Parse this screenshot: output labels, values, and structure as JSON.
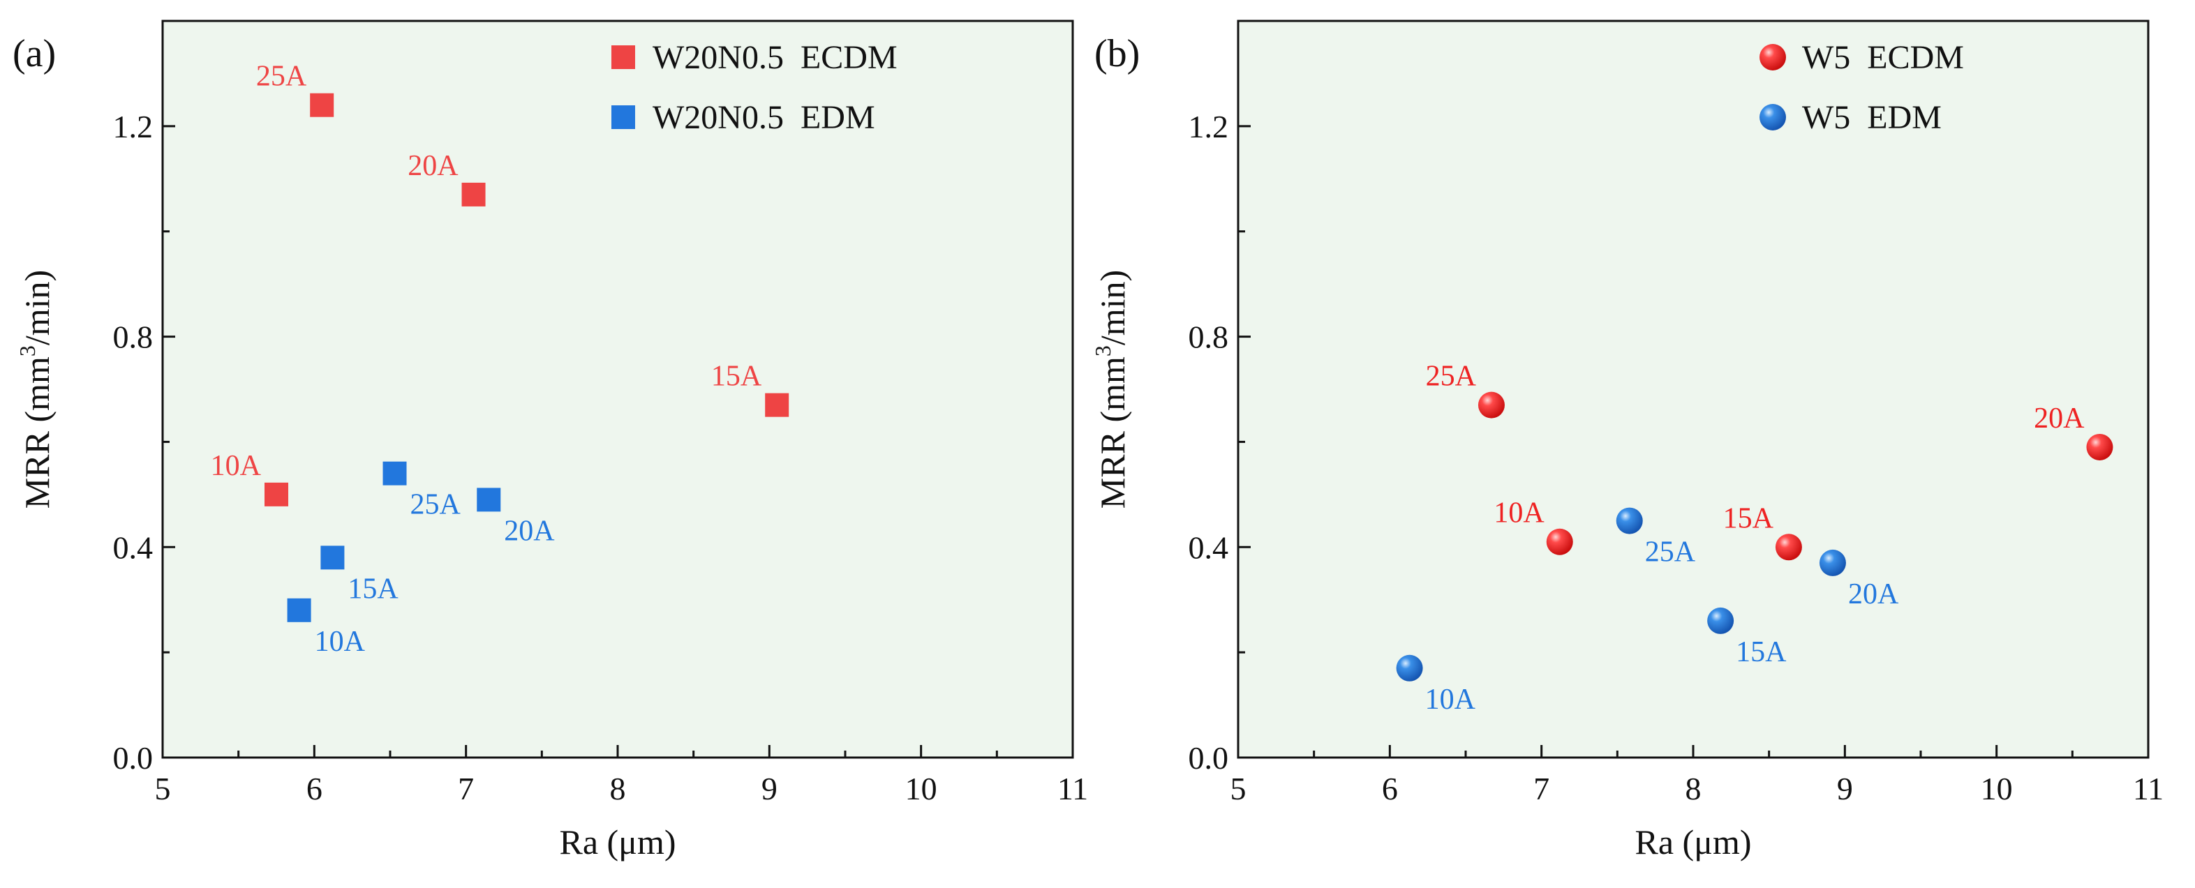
{
  "figure": {
    "background_color": "#eef6ee"
  },
  "chart_data": [
    {
      "type": "scatter",
      "panel_label": "(a)",
      "xlabel": "Ra (μm)",
      "ylabel_prefix": "MRR (mm",
      "ylabel_sup": "3",
      "ylabel_suffix": "/min)",
      "xlim": [
        5,
        11
      ],
      "ylim": [
        0.0,
        1.4
      ],
      "xticks": [
        5,
        6,
        7,
        8,
        9,
        10,
        11
      ],
      "yticks": [
        0.0,
        0.4,
        0.8,
        1.2
      ],
      "ytick_labels": [
        "0.0",
        "0.4",
        "0.8",
        "1.2"
      ],
      "marker": "square",
      "legend_position": "top-right",
      "series": [
        {
          "name": "W20N0.5  ECDM",
          "color": "#ee4444",
          "points": [
            {
              "x": 5.75,
              "y": 0.5,
              "label": "10A",
              "label_pos": "above-left"
            },
            {
              "x": 9.05,
              "y": 0.67,
              "label": "15A",
              "label_pos": "above-left"
            },
            {
              "x": 7.05,
              "y": 1.07,
              "label": "20A",
              "label_pos": "above-left"
            },
            {
              "x": 6.05,
              "y": 1.24,
              "label": "25A",
              "label_pos": "above-left"
            }
          ]
        },
        {
          "name": "W20N0.5  EDM",
          "color": "#2277dd",
          "points": [
            {
              "x": 5.9,
              "y": 0.28,
              "label": "10A",
              "label_pos": "below-right"
            },
            {
              "x": 6.12,
              "y": 0.38,
              "label": "15A",
              "label_pos": "below-right"
            },
            {
              "x": 7.15,
              "y": 0.49,
              "label": "20A",
              "label_pos": "below-right"
            },
            {
              "x": 6.53,
              "y": 0.54,
              "label": "25A",
              "label_pos": "below-right"
            }
          ]
        }
      ]
    },
    {
      "type": "scatter",
      "panel_label": "(b)",
      "xlabel": "Ra (μm)",
      "ylabel_prefix": "MRR (mm",
      "ylabel_sup": "3",
      "ylabel_suffix": "/min)",
      "xlim": [
        5,
        11
      ],
      "ylim": [
        0.0,
        1.4
      ],
      "xticks": [
        5,
        6,
        7,
        8,
        9,
        10,
        11
      ],
      "yticks": [
        0.0,
        0.4,
        0.8,
        1.2
      ],
      "ytick_labels": [
        "0.0",
        "0.4",
        "0.8",
        "1.2"
      ],
      "marker": "sphere",
      "legend_position": "top-right",
      "series": [
        {
          "name": "W5  ECDM",
          "color": "#ee2222",
          "points": [
            {
              "x": 7.12,
              "y": 0.41,
              "label": "10A",
              "label_pos": "above-left"
            },
            {
              "x": 8.63,
              "y": 0.4,
              "label": "15A",
              "label_pos": "above-left"
            },
            {
              "x": 10.68,
              "y": 0.59,
              "label": "20A",
              "label_pos": "above-left"
            },
            {
              "x": 6.67,
              "y": 0.67,
              "label": "25A",
              "label_pos": "above-left"
            }
          ]
        },
        {
          "name": "W5  EDM",
          "color": "#2277dd",
          "points": [
            {
              "x": 6.13,
              "y": 0.17,
              "label": "10A",
              "label_pos": "below-right"
            },
            {
              "x": 8.18,
              "y": 0.26,
              "label": "15A",
              "label_pos": "below-right"
            },
            {
              "x": 8.92,
              "y": 0.37,
              "label": "20A",
              "label_pos": "below-right"
            },
            {
              "x": 7.58,
              "y": 0.45,
              "label": "25A",
              "label_pos": "below-right"
            }
          ]
        }
      ]
    }
  ]
}
